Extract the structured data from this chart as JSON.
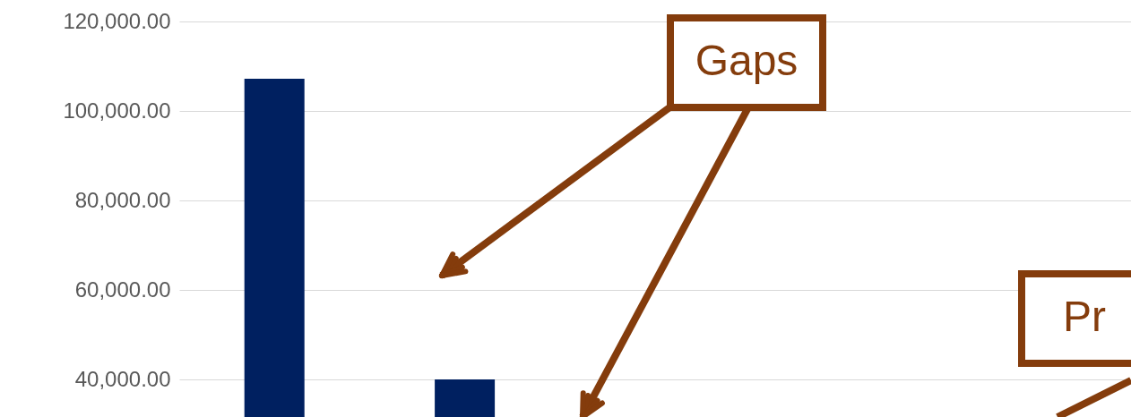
{
  "chart_data": {
    "type": "bar",
    "categories": [
      null,
      null,
      null,
      null,
      null
    ],
    "series": [
      {
        "color": "#002060",
        "values": [
          107200,
          40000,
          null,
          null,
          null
        ]
      }
    ],
    "ylim": [
      31600,
      124800
    ],
    "yticks": [
      {
        "value": 40000,
        "label": "40,000.00"
      },
      {
        "value": 60000,
        "label": "60,000.00"
      },
      {
        "value": 80000,
        "label": "80,000.00"
      },
      {
        "value": 100000,
        "label": "100,000.00"
      },
      {
        "value": 120000,
        "label": "120,000.00"
      }
    ],
    "grid": "y",
    "tick_labels": "y",
    "annotations": [
      "Gaps",
      "Pr"
    ]
  }
}
